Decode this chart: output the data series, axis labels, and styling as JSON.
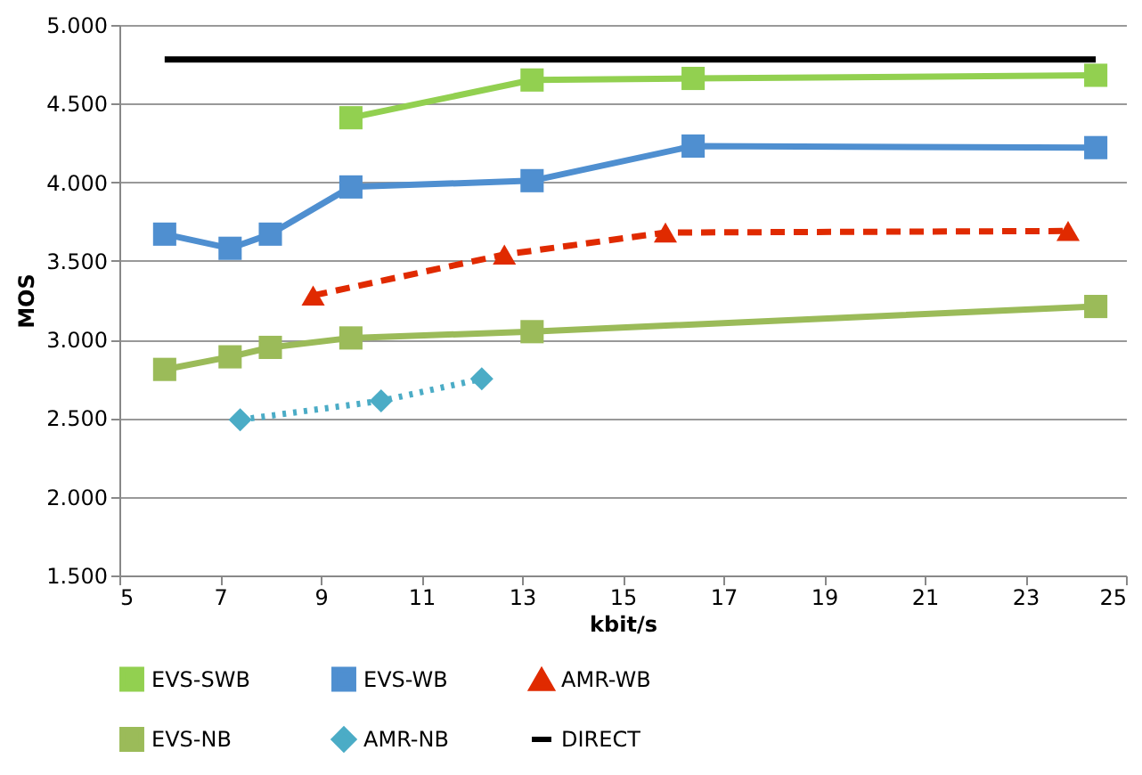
{
  "chart_data": {
    "type": "line",
    "xlabel": "kbit/s",
    "ylabel": "MOS",
    "xlim": [
      5,
      25
    ],
    "xticks": [
      5,
      7,
      9,
      11,
      13,
      15,
      17,
      19,
      21,
      23,
      25
    ],
    "ylim": [
      1.5,
      5.0
    ],
    "yticks": [
      {
        "value": 1.5,
        "label": "1.500"
      },
      {
        "value": 2.0,
        "label": "2.000"
      },
      {
        "value": 2.5,
        "label": "2.500"
      },
      {
        "value": 3.0,
        "label": "3.000"
      },
      {
        "value": 3.5,
        "label": "3.500"
      },
      {
        "value": 4.0,
        "label": "4.000"
      },
      {
        "value": 4.5,
        "label": "4.500"
      },
      {
        "value": 5.0,
        "label": "5.000"
      }
    ],
    "grid": "y",
    "legend": "bottom",
    "series": [
      {
        "name": "EVS-SWB",
        "color": "#92d050",
        "marker": "square",
        "line_style": "solid",
        "x": [
          9.6,
          13.2,
          16.4,
          24.4
        ],
        "values": [
          4.41,
          4.65,
          4.66,
          4.68
        ]
      },
      {
        "name": "EVS-WB",
        "color": "#4f8fd0",
        "marker": "square",
        "line_style": "solid",
        "x": [
          5.9,
          7.2,
          8.0,
          9.6,
          13.2,
          16.4,
          24.4
        ],
        "values": [
          3.67,
          3.58,
          3.67,
          3.97,
          4.01,
          4.23,
          4.22
        ]
      },
      {
        "name": "AMR-WB",
        "color": "#e02a00",
        "marker": "triangle",
        "line_style": "dashed",
        "x": [
          8.85,
          12.65,
          15.85,
          23.85
        ],
        "values": [
          3.28,
          3.54,
          3.68,
          3.69
        ]
      },
      {
        "name": "EVS-NB",
        "color": "#9bbb59",
        "marker": "square",
        "line_style": "solid",
        "x": [
          5.9,
          7.2,
          8.0,
          9.6,
          13.2,
          24.4
        ],
        "values": [
          2.81,
          2.89,
          2.95,
          3.01,
          3.05,
          3.21
        ]
      },
      {
        "name": "AMR-NB",
        "color": "#4bacc6",
        "marker": "diamond",
        "line_style": "dotted",
        "x": [
          7.4,
          10.2,
          12.2
        ],
        "values": [
          2.49,
          2.61,
          2.75
        ]
      },
      {
        "name": "DIRECT",
        "color": "#000000",
        "marker": "none",
        "line_style": "solid",
        "x": [
          5.9,
          24.4
        ],
        "values": [
          4.78,
          4.78
        ]
      }
    ]
  }
}
